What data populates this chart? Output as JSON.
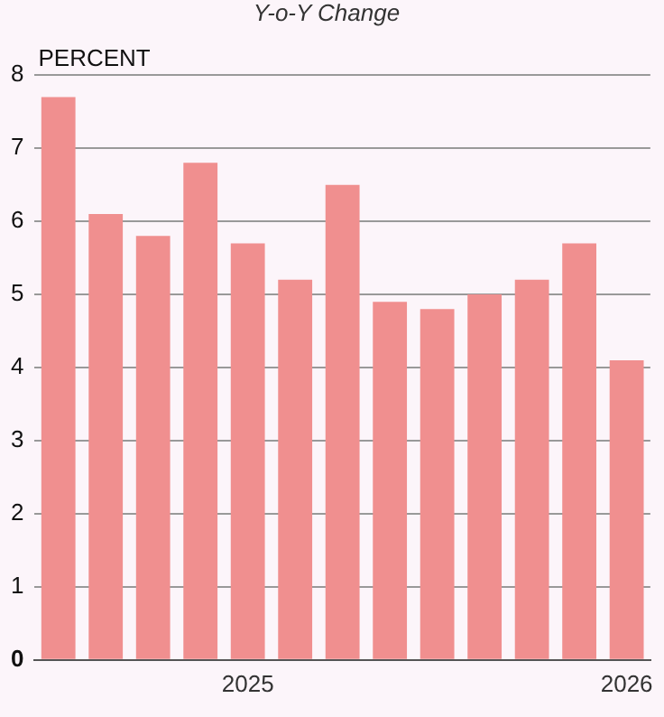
{
  "chart_data": {
    "type": "bar",
    "title": "Y-o-Y Change",
    "ylabel": "PERCENT",
    "categories": [
      null,
      null,
      null,
      null,
      "2025",
      null,
      null,
      null,
      null,
      null,
      null,
      null,
      "2026"
    ],
    "values": [
      7.7,
      6.1,
      5.8,
      6.8,
      5.7,
      5.2,
      6.5,
      4.9,
      4.8,
      5.0,
      5.2,
      5.7,
      4.1
    ],
    "color": "#f08f8f",
    "ylim": [
      0,
      8
    ],
    "yticks": [
      0,
      1,
      2,
      3,
      4,
      5,
      6,
      7,
      8
    ],
    "grid": "y",
    "legend": false
  }
}
